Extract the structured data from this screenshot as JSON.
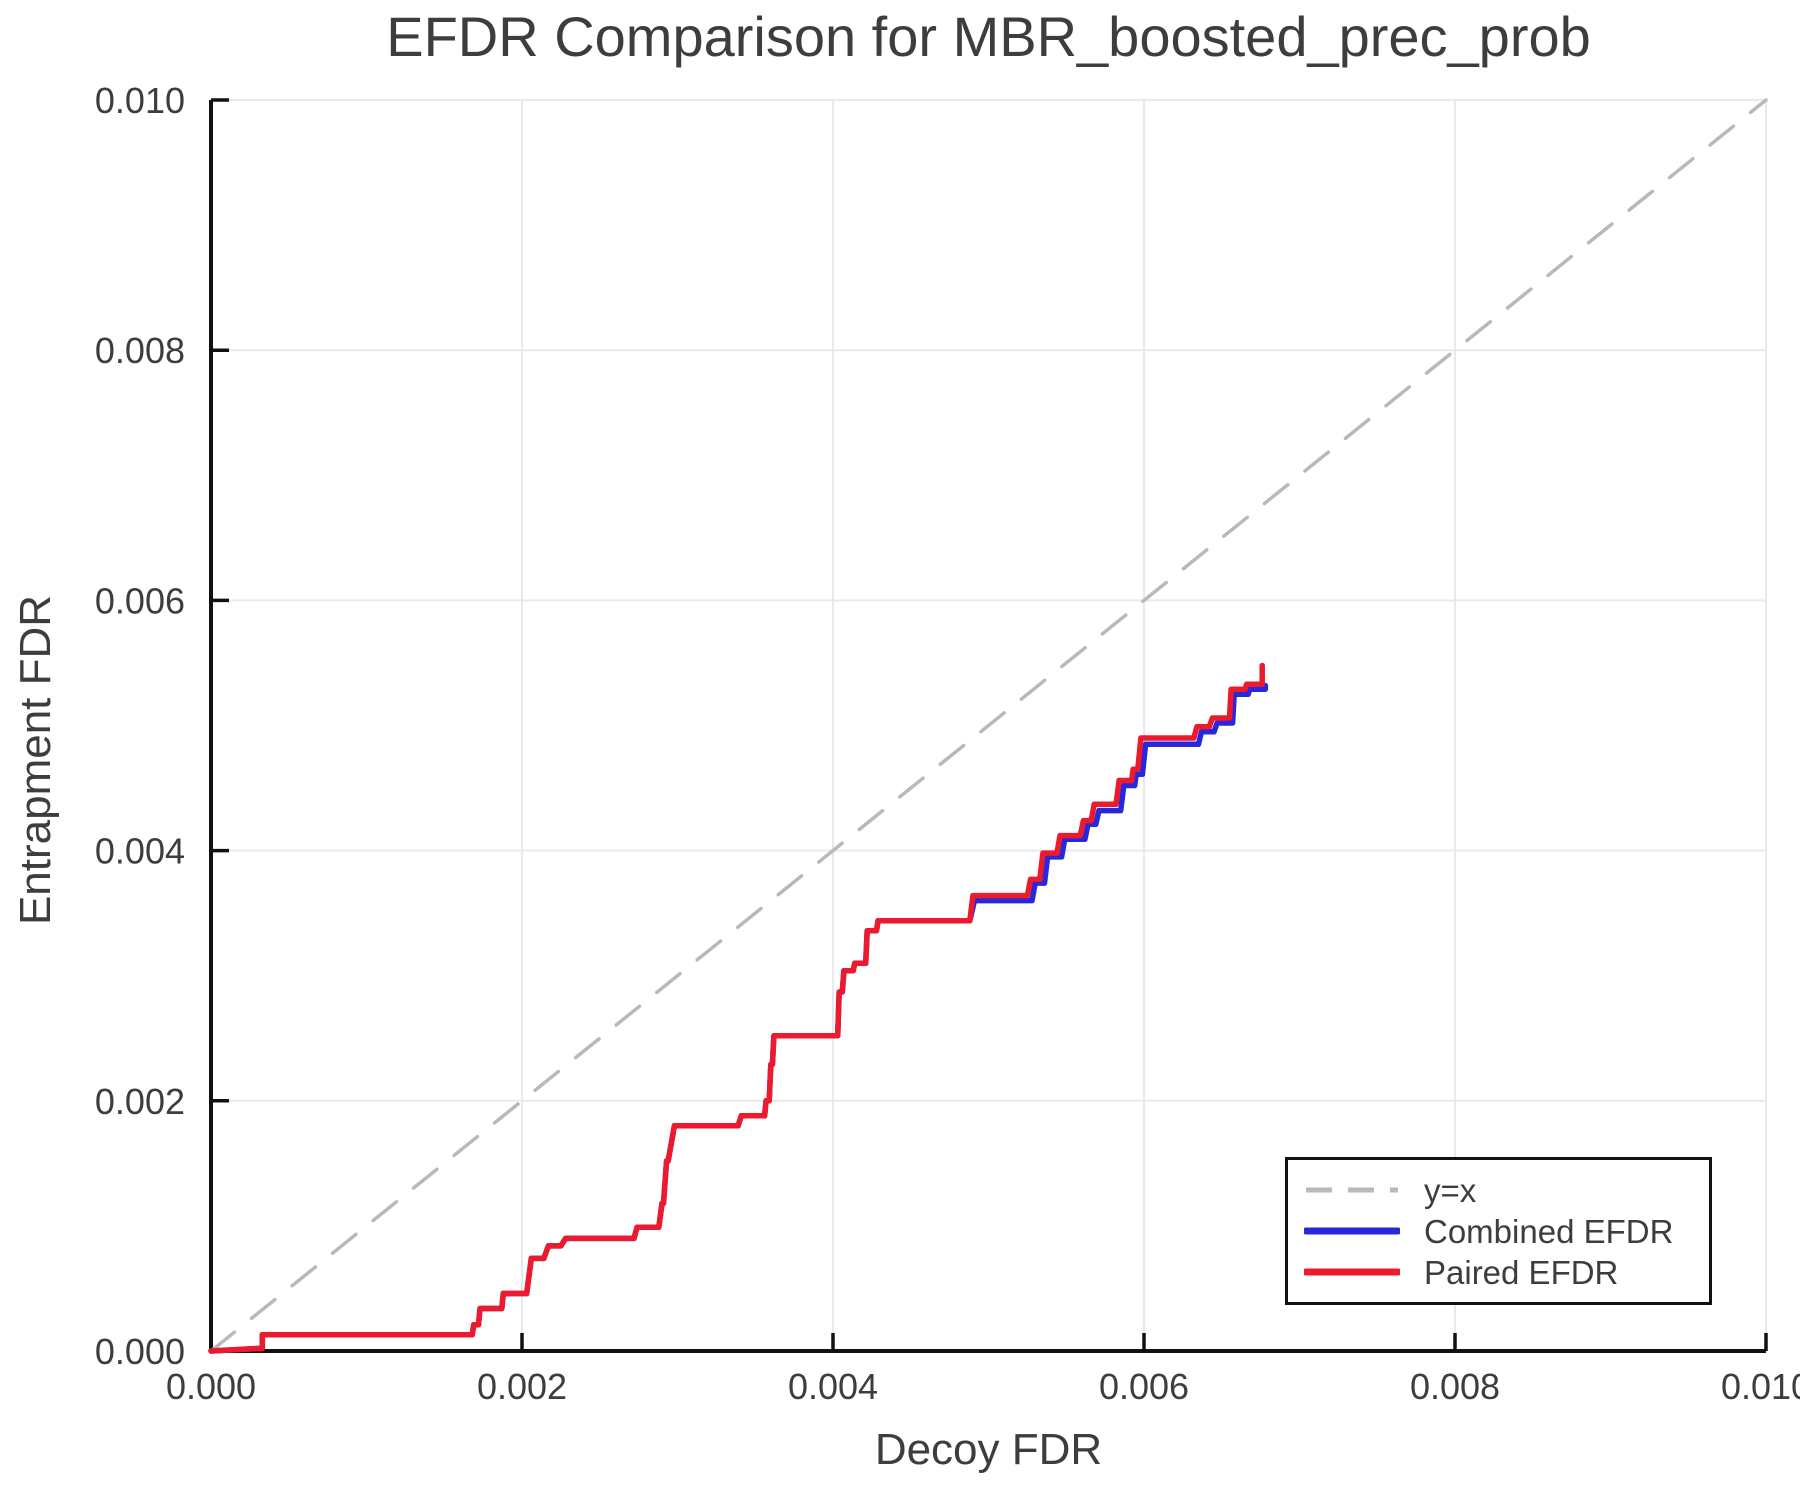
{
  "figure": {
    "title": "EFDR Comparison for MBR_boosted_prec_prob",
    "xlabel": "Decoy FDR",
    "ylabel": "Entrapment FDR"
  },
  "legend": {
    "position": "lower right",
    "items": [
      {
        "label": "y=x",
        "style": "dashed"
      },
      {
        "label": "Combined EFDR",
        "style": "solid"
      },
      {
        "label": "Paired EFDR",
        "style": "solid"
      }
    ]
  },
  "chart_data": {
    "type": "line",
    "title": "EFDR Comparison for MBR_boosted_prec_prob",
    "xlabel": "Decoy FDR",
    "ylabel": "Entrapment FDR",
    "xlim": [
      0.0,
      0.01
    ],
    "ylim": [
      0.0,
      0.01
    ],
    "grid": true,
    "legend_position": "lower right",
    "x_ticks": {
      "values": [
        0.0,
        0.002,
        0.004,
        0.006,
        0.008,
        0.01
      ],
      "labels": [
        "0.000",
        "0.002",
        "0.004",
        "0.006",
        "0.008",
        "0.010"
      ]
    },
    "y_ticks": {
      "values": [
        0.0,
        0.002,
        0.004,
        0.006,
        0.008,
        0.01
      ],
      "labels": [
        "0.000",
        "0.002",
        "0.004",
        "0.006",
        "0.008",
        "0.010"
      ]
    },
    "colors": {
      "identity": "#b9b9b9",
      "combined": "#2727dd",
      "paired": "#ed1a2d",
      "grid": "#e9e9e9",
      "spine": "#111111",
      "text": "#3d3d3d"
    },
    "series": [
      {
        "name": "y=x",
        "color": "#b9b9b9",
        "dashed": true,
        "points": [
          [
            0.0,
            0.0
          ],
          [
            0.01,
            0.01
          ]
        ]
      },
      {
        "name": "Combined EFDR",
        "color": "#2727dd",
        "dashed": false,
        "points": [
          [
            0.0,
            0.0
          ],
          [
            0.0003,
            2e-05
          ],
          [
            0.00033,
            2e-05
          ],
          [
            0.00033,
            0.00013
          ],
          [
            0.00168,
            0.00013
          ],
          [
            0.00169,
            0.00021
          ],
          [
            0.00172,
            0.00021
          ],
          [
            0.00173,
            0.00034
          ],
          [
            0.00187,
            0.00034
          ],
          [
            0.00188,
            0.00046
          ],
          [
            0.00203,
            0.00046
          ],
          [
            0.00206,
            0.00074
          ],
          [
            0.00214,
            0.00074
          ],
          [
            0.00217,
            0.00084
          ],
          [
            0.00225,
            0.00084
          ],
          [
            0.00228,
            0.0009
          ],
          [
            0.00272,
            0.0009
          ],
          [
            0.00274,
            0.00099
          ],
          [
            0.00288,
            0.00099
          ],
          [
            0.0029,
            0.00118
          ],
          [
            0.00291,
            0.00118
          ],
          [
            0.00293,
            0.00152
          ],
          [
            0.00294,
            0.00152
          ],
          [
            0.00298,
            0.0018
          ],
          [
            0.00339,
            0.0018
          ],
          [
            0.00341,
            0.00188
          ],
          [
            0.00356,
            0.00188
          ],
          [
            0.00357,
            0.002
          ],
          [
            0.00359,
            0.002
          ],
          [
            0.0036,
            0.00229
          ],
          [
            0.00361,
            0.00229
          ],
          [
            0.00362,
            0.00252
          ],
          [
            0.00403,
            0.00252
          ],
          [
            0.00404,
            0.00287
          ],
          [
            0.00406,
            0.00287
          ],
          [
            0.00407,
            0.00304
          ],
          [
            0.00413,
            0.00304
          ],
          [
            0.00414,
            0.0031
          ],
          [
            0.00421,
            0.0031
          ],
          [
            0.00422,
            0.00336
          ],
          [
            0.00428,
            0.00336
          ],
          [
            0.00429,
            0.00344
          ],
          [
            0.00488,
            0.00344
          ],
          [
            0.00491,
            0.0036
          ],
          [
            0.00528,
            0.0036
          ],
          [
            0.0053,
            0.00374
          ],
          [
            0.00536,
            0.00374
          ],
          [
            0.00538,
            0.00395
          ],
          [
            0.00547,
            0.00395
          ],
          [
            0.00549,
            0.00409
          ],
          [
            0.00562,
            0.00409
          ],
          [
            0.00564,
            0.00421
          ],
          [
            0.00569,
            0.00421
          ],
          [
            0.00571,
            0.00432
          ],
          [
            0.00585,
            0.00432
          ],
          [
            0.00587,
            0.00452
          ],
          [
            0.00594,
            0.00452
          ],
          [
            0.00595,
            0.00461
          ],
          [
            0.00599,
            0.00461
          ],
          [
            0.00601,
            0.00485
          ],
          [
            0.00635,
            0.00485
          ],
          [
            0.00637,
            0.00495
          ],
          [
            0.00645,
            0.00495
          ],
          [
            0.00647,
            0.00502
          ],
          [
            0.00657,
            0.00502
          ],
          [
            0.00658,
            0.00525
          ],
          [
            0.00667,
            0.00525
          ],
          [
            0.00668,
            0.00529
          ],
          [
            0.00678,
            0.00529
          ],
          [
            0.00678,
            0.00532
          ]
        ]
      },
      {
        "name": "Paired EFDR",
        "color": "#ed1a2d",
        "dashed": false,
        "points": [
          [
            0.0,
            0.0
          ],
          [
            0.0003,
            2e-05
          ],
          [
            0.00033,
            2e-05
          ],
          [
            0.00033,
            0.00013
          ],
          [
            0.00168,
            0.00013
          ],
          [
            0.00169,
            0.00021
          ],
          [
            0.00172,
            0.00021
          ],
          [
            0.00173,
            0.00034
          ],
          [
            0.00187,
            0.00034
          ],
          [
            0.00188,
            0.00046
          ],
          [
            0.00203,
            0.00046
          ],
          [
            0.00206,
            0.00074
          ],
          [
            0.00214,
            0.00074
          ],
          [
            0.00217,
            0.00084
          ],
          [
            0.00225,
            0.00084
          ],
          [
            0.00228,
            0.0009
          ],
          [
            0.00272,
            0.0009
          ],
          [
            0.00274,
            0.00099
          ],
          [
            0.00288,
            0.00099
          ],
          [
            0.0029,
            0.00118
          ],
          [
            0.00291,
            0.00118
          ],
          [
            0.00293,
            0.00152
          ],
          [
            0.00294,
            0.00152
          ],
          [
            0.00298,
            0.0018
          ],
          [
            0.00339,
            0.0018
          ],
          [
            0.00341,
            0.00188
          ],
          [
            0.00356,
            0.00188
          ],
          [
            0.00357,
            0.002
          ],
          [
            0.00359,
            0.002
          ],
          [
            0.0036,
            0.00229
          ],
          [
            0.00361,
            0.00229
          ],
          [
            0.00362,
            0.00252
          ],
          [
            0.00403,
            0.00252
          ],
          [
            0.00404,
            0.00287
          ],
          [
            0.00406,
            0.00287
          ],
          [
            0.00407,
            0.00304
          ],
          [
            0.00413,
            0.00304
          ],
          [
            0.00414,
            0.0031
          ],
          [
            0.00421,
            0.0031
          ],
          [
            0.00422,
            0.00336
          ],
          [
            0.00428,
            0.00336
          ],
          [
            0.00429,
            0.00344
          ],
          [
            0.00488,
            0.00344
          ],
          [
            0.0049,
            0.00364
          ],
          [
            0.00525,
            0.00364
          ],
          [
            0.00527,
            0.00377
          ],
          [
            0.00533,
            0.00377
          ],
          [
            0.00535,
            0.00398
          ],
          [
            0.00544,
            0.00398
          ],
          [
            0.00546,
            0.00412
          ],
          [
            0.00559,
            0.00412
          ],
          [
            0.00561,
            0.00424
          ],
          [
            0.00566,
            0.00424
          ],
          [
            0.00568,
            0.00437
          ],
          [
            0.00582,
            0.00437
          ],
          [
            0.00584,
            0.00456
          ],
          [
            0.00592,
            0.00456
          ],
          [
            0.00593,
            0.00465
          ],
          [
            0.00596,
            0.00465
          ],
          [
            0.00598,
            0.0049
          ],
          [
            0.00632,
            0.0049
          ],
          [
            0.00634,
            0.00499
          ],
          [
            0.00642,
            0.00499
          ],
          [
            0.00644,
            0.00506
          ],
          [
            0.00655,
            0.00506
          ],
          [
            0.00656,
            0.00529
          ],
          [
            0.00665,
            0.00529
          ],
          [
            0.00666,
            0.00533
          ],
          [
            0.00676,
            0.00533
          ],
          [
            0.00676,
            0.00548
          ]
        ]
      }
    ]
  }
}
